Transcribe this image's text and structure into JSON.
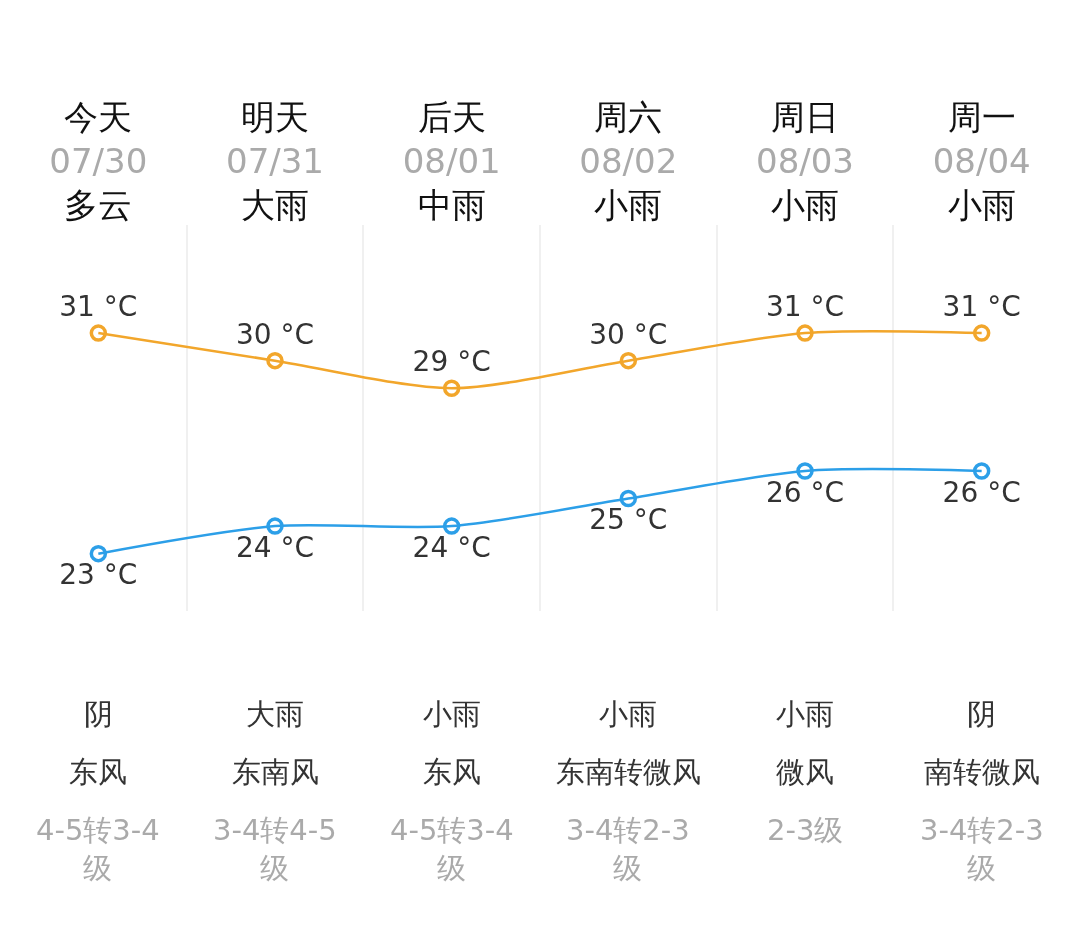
{
  "chart_data": {
    "type": "line",
    "categories": [
      "今天\n07/30\n多云",
      "明天\n07/31\n大雨",
      "后天\n08/01\n中雨",
      "周六\n08/02\n小雨",
      "周日\n08/03\n小雨",
      "周一\n08/04\n小雨"
    ],
    "series": [
      {
        "color": "#f2a62b",
        "values": [
          31,
          30,
          29,
          30,
          31,
          31
        ],
        "value_labels": [
          "31 °C",
          "30 °C",
          "29 °C",
          "30 °C",
          "31 °C",
          "31 °C"
        ]
      },
      {
        "color": "#2c9fe8",
        "values": [
          23,
          24,
          24,
          25,
          26,
          26
        ],
        "value_labels": [
          "23 °C",
          "24 °C",
          "24 °C",
          "25 °C",
          "26 °C",
          "26 °C"
        ]
      }
    ],
    "annotations": [
      "阴",
      "东风",
      "4-5转3-4级",
      "大雨",
      "东南风",
      "3-4转4-5级",
      "小雨",
      "东风",
      "4-5转3-4级",
      "小雨",
      "东南转微风",
      "3-4转2-3级",
      "小雨",
      "微风",
      "2-3级",
      "阴",
      "南转微风",
      "3-4转2-3级"
    ],
    "marker": "circle",
    "line_style": "solid",
    "grid": "x"
  }
}
